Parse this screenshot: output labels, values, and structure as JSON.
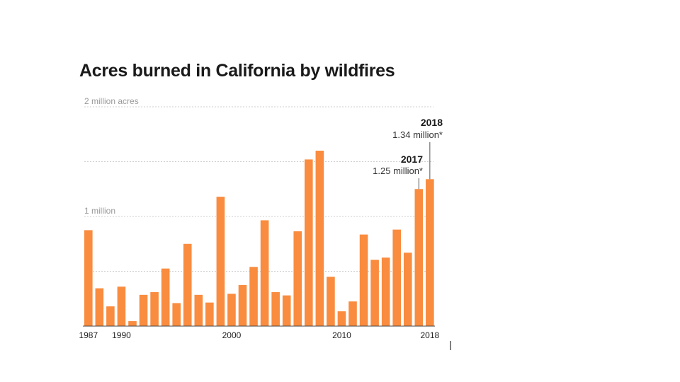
{
  "chart_data": {
    "type": "bar",
    "title": "Acres burned in California by wildfires",
    "xlabel": "",
    "ylabel": "",
    "ylim": [
      0,
      2000000
    ],
    "grid": true,
    "gridlines": [
      {
        "value": 2000000,
        "label": "2 million acres"
      },
      {
        "value": 1500000,
        "label": ""
      },
      {
        "value": 1000000,
        "label": "1 million"
      },
      {
        "value": 500000,
        "label": ""
      }
    ],
    "categories": [
      1987,
      1988,
      1989,
      1990,
      1991,
      1992,
      1993,
      1994,
      1995,
      1996,
      1997,
      1998,
      1999,
      2000,
      2001,
      2002,
      2003,
      2004,
      2005,
      2006,
      2007,
      2008,
      2009,
      2010,
      2011,
      2012,
      2013,
      2014,
      2015,
      2016,
      2017,
      2018
    ],
    "x_tick_labels": [
      "1987",
      "1990",
      "2000",
      "2010",
      "2018"
    ],
    "values": [
      875000,
      345000,
      180000,
      360000,
      45000,
      285000,
      310000,
      525000,
      210000,
      750000,
      285000,
      215000,
      1180000,
      295000,
      375000,
      540000,
      965000,
      310000,
      280000,
      865000,
      1520000,
      1600000,
      450000,
      135000,
      225000,
      835000,
      605000,
      625000,
      880000,
      670000,
      1250000,
      1340000
    ],
    "annotations": [
      {
        "year": "2017",
        "label": "2017",
        "value_text": "1.25 million*"
      },
      {
        "year": "2018",
        "label": "2018",
        "value_text": "1.34 million*"
      }
    ]
  }
}
